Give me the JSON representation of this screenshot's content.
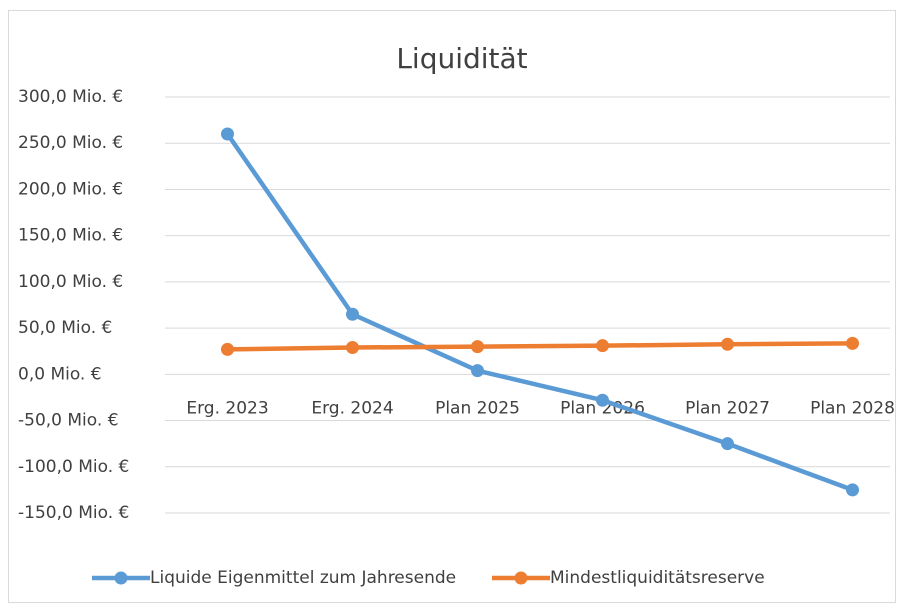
{
  "chart_data": {
    "type": "line",
    "title": "Liquidität",
    "categories": [
      "Erg. 2023",
      "Erg. 2024",
      "Plan 2025",
      "Plan 2026",
      "Plan 2027",
      "Plan 2028"
    ],
    "series": [
      {
        "name": "Liquide Eigenmittel zum Jahresende",
        "color": "#5b9bd5",
        "values": [
          260,
          65,
          4,
          -28,
          -75,
          -125
        ]
      },
      {
        "name": "Mindestliquiditätsreserve",
        "color": "#ed7d31",
        "values": [
          27,
          29,
          30,
          31,
          32.5,
          33.5
        ]
      }
    ],
    "ylim": [
      -150,
      300
    ],
    "yticks": [
      {
        "value": -150,
        "label": "-150,0 Mio. €"
      },
      {
        "value": -100,
        "label": "-100,0 Mio. €"
      },
      {
        "value": -50,
        "label": "-50,0 Mio. €"
      },
      {
        "value": 0,
        "label": "0,0 Mio. €"
      },
      {
        "value": 50,
        "label": "50,0 Mio. €"
      },
      {
        "value": 100,
        "label": "100,0 Mio. €"
      },
      {
        "value": 150,
        "label": "150,0 Mio. €"
      },
      {
        "value": 200,
        "label": "200,0 Mio. €"
      },
      {
        "value": 250,
        "label": "250,0 Mio. €"
      },
      {
        "value": 300,
        "label": "300,0 Mio. €"
      }
    ],
    "grid": true,
    "legend": "bottom"
  }
}
